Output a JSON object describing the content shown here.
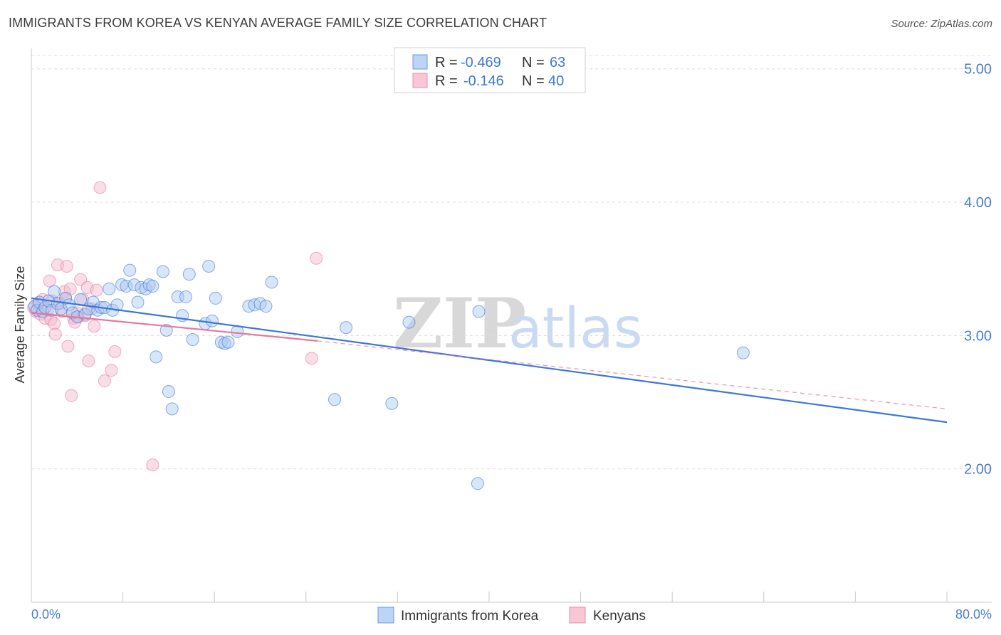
{
  "title": "IMMIGRANTS FROM KOREA VS KENYAN AVERAGE FAMILY SIZE CORRELATION CHART",
  "source": "Source: ZipAtlas.com",
  "watermark": {
    "zip": "ZIP",
    "atlas": "atlas"
  },
  "colors": {
    "blue": "#3c78d8",
    "blue_fill": "#a9c8f2",
    "pink": "#e8769d",
    "pink_fill": "#f5b5ca",
    "grid": "#dcdcdc"
  },
  "legend": {
    "r_label": "R =",
    "n_label": "N =",
    "korea": {
      "r": "-0.469",
      "n": "63"
    },
    "kenya": {
      "r": "-0.146",
      "n": "40"
    }
  },
  "bottom_legend": {
    "korea": "Immigrants from Korea",
    "kenya": "Kenyans"
  },
  "chart_data": {
    "type": "scatter",
    "title": "IMMIGRANTS FROM KOREA VS KENYAN AVERAGE FAMILY SIZE CORRELATION CHART",
    "xlabel": "",
    "ylabel": "Average Family Size",
    "xlim": [
      0,
      80
    ],
    "ylim": [
      1.0,
      5.1
    ],
    "x_unit": "%",
    "x_tick_labels": [
      "0.0%",
      "80.0%"
    ],
    "y_ticks": [
      2.0,
      3.0,
      4.0,
      5.0
    ],
    "y_tick_labels": [
      "2.00",
      "3.00",
      "4.00",
      "5.00"
    ],
    "grid": true,
    "legend_position": "top-center",
    "series": [
      {
        "name": "Immigrants from Korea",
        "color": "#3c78d8",
        "r": -0.469,
        "n": 63,
        "trend": {
          "x": [
            0,
            80
          ],
          "y": [
            3.28,
            2.35
          ]
        },
        "points": [
          [
            0.3,
            3.22
          ],
          [
            0.5,
            3.19
          ],
          [
            0.7,
            3.25
          ],
          [
            1.0,
            3.18
          ],
          [
            1.2,
            3.21
          ],
          [
            1.5,
            3.26
          ],
          [
            1.8,
            3.19
          ],
          [
            2.0,
            3.33
          ],
          [
            2.3,
            3.24
          ],
          [
            2.6,
            3.2
          ],
          [
            3.0,
            3.28
          ],
          [
            3.3,
            3.23
          ],
          [
            3.6,
            3.17
          ],
          [
            4.0,
            3.14
          ],
          [
            4.3,
            3.27
          ],
          [
            4.7,
            3.16
          ],
          [
            5.0,
            3.2
          ],
          [
            5.4,
            3.25
          ],
          [
            5.8,
            3.19
          ],
          [
            6.1,
            3.21
          ],
          [
            6.4,
            3.21
          ],
          [
            6.8,
            3.35
          ],
          [
            7.1,
            3.19
          ],
          [
            7.5,
            3.23
          ],
          [
            7.9,
            3.38
          ],
          [
            8.3,
            3.37
          ],
          [
            8.6,
            3.49
          ],
          [
            9.0,
            3.38
          ],
          [
            9.3,
            3.25
          ],
          [
            9.6,
            3.36
          ],
          [
            10.0,
            3.35
          ],
          [
            10.3,
            3.38
          ],
          [
            10.6,
            3.37
          ],
          [
            10.9,
            2.84
          ],
          [
            11.5,
            3.48
          ],
          [
            11.8,
            3.04
          ],
          [
            12.0,
            2.58
          ],
          [
            12.3,
            2.45
          ],
          [
            12.8,
            3.29
          ],
          [
            13.2,
            3.15
          ],
          [
            13.5,
            3.29
          ],
          [
            13.8,
            3.46
          ],
          [
            14.1,
            2.97
          ],
          [
            15.2,
            3.09
          ],
          [
            15.5,
            3.52
          ],
          [
            15.8,
            3.11
          ],
          [
            16.1,
            3.28
          ],
          [
            16.6,
            2.95
          ],
          [
            16.9,
            2.94
          ],
          [
            17.2,
            2.95
          ],
          [
            18.0,
            3.03
          ],
          [
            19.0,
            3.22
          ],
          [
            19.5,
            3.23
          ],
          [
            20.0,
            3.24
          ],
          [
            20.5,
            3.22
          ],
          [
            21.0,
            3.4
          ],
          [
            26.5,
            2.52
          ],
          [
            27.5,
            3.06
          ],
          [
            31.5,
            2.49
          ],
          [
            33.0,
            3.1
          ],
          [
            39.0,
            1.89
          ],
          [
            39.1,
            3.18
          ],
          [
            62.2,
            2.87
          ]
        ]
      },
      {
        "name": "Kenyans",
        "color": "#e8769d",
        "r": -0.146,
        "n": 40,
        "trend": {
          "x": [
            0,
            25
          ],
          "y": [
            3.17,
            2.96
          ],
          "dashed_extension": {
            "x": [
              25,
              80
            ],
            "y": [
              2.96,
              2.45
            ]
          }
        },
        "points": [
          [
            0.2,
            3.21
          ],
          [
            0.4,
            3.18
          ],
          [
            0.6,
            3.24
          ],
          [
            0.8,
            3.16
          ],
          [
            1.0,
            3.27
          ],
          [
            1.2,
            3.13
          ],
          [
            1.4,
            3.19
          ],
          [
            1.6,
            3.41
          ],
          [
            1.7,
            3.12
          ],
          [
            1.8,
            3.26
          ],
          [
            2.0,
            3.09
          ],
          [
            2.1,
            3.01
          ],
          [
            2.3,
            3.53
          ],
          [
            2.5,
            3.24
          ],
          [
            2.7,
            3.18
          ],
          [
            2.9,
            3.33
          ],
          [
            3.0,
            3.28
          ],
          [
            3.1,
            3.52
          ],
          [
            3.2,
            2.92
          ],
          [
            3.4,
            3.35
          ],
          [
            3.5,
            2.55
          ],
          [
            3.7,
            3.13
          ],
          [
            3.8,
            3.1
          ],
          [
            4.0,
            3.17
          ],
          [
            4.1,
            3.14
          ],
          [
            4.3,
            3.42
          ],
          [
            4.5,
            3.27
          ],
          [
            4.7,
            3.15
          ],
          [
            4.9,
            3.36
          ],
          [
            5.0,
            2.81
          ],
          [
            5.3,
            3.2
          ],
          [
            5.5,
            3.07
          ],
          [
            5.7,
            3.34
          ],
          [
            6.0,
            4.11
          ],
          [
            6.4,
            2.66
          ],
          [
            7.0,
            2.74
          ],
          [
            7.3,
            2.88
          ],
          [
            10.6,
            2.03
          ],
          [
            24.5,
            2.83
          ],
          [
            24.9,
            3.58
          ]
        ]
      }
    ]
  }
}
